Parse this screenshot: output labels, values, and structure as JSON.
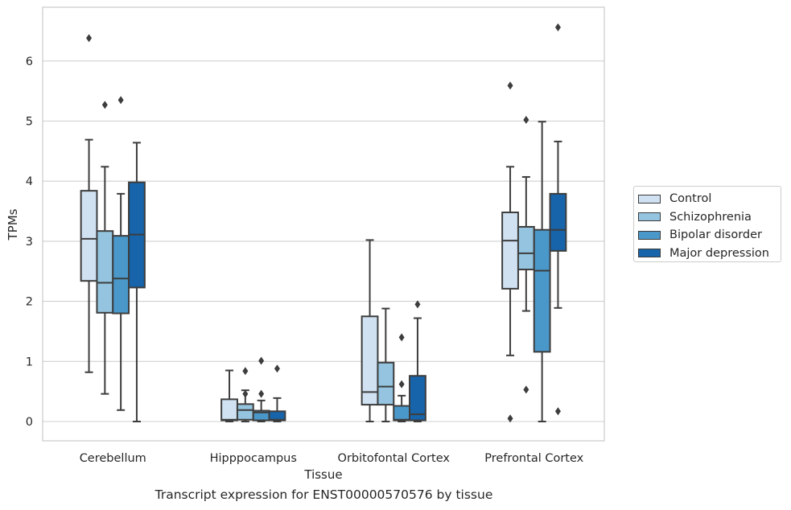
{
  "caption": "Transcript expression for ENST00000570576 by tissue",
  "chart_data": {
    "type": "box",
    "xlabel": "Tissue",
    "ylabel": "TPMs",
    "ylim": [
      -0.32,
      6.9
    ],
    "yticks": [
      0,
      1,
      2,
      3,
      4,
      5,
      6
    ],
    "grid": "horizontal",
    "legend_position": "right",
    "categories": [
      "Cerebellum",
      "Hipppocampus",
      "Orbitofontal Cortex",
      "Prefrontal Cortex"
    ],
    "series": [
      {
        "name": "Control",
        "color": "#d0e1f2",
        "boxes": [
          {
            "whisker_low": 0.82,
            "q1": 2.34,
            "median": 3.04,
            "q3": 3.84,
            "whisker_high": 4.69,
            "outliers": [
              6.38
            ]
          },
          {
            "whisker_low": 0.0,
            "q1": 0.02,
            "median": 0.03,
            "q3": 0.37,
            "whisker_high": 0.85,
            "outliers": []
          },
          {
            "whisker_low": 0.0,
            "q1": 0.28,
            "median": 0.49,
            "q3": 1.75,
            "whisker_high": 3.02,
            "outliers": []
          },
          {
            "whisker_low": 1.1,
            "q1": 2.21,
            "median": 3.01,
            "q3": 3.48,
            "whisker_high": 4.24,
            "outliers": [
              5.59,
              0.05
            ]
          }
        ]
      },
      {
        "name": "Schizophrenia",
        "color": "#94c4df",
        "boxes": [
          {
            "whisker_low": 0.46,
            "q1": 1.81,
            "median": 2.31,
            "q3": 3.17,
            "whisker_high": 4.24,
            "outliers": [
              5.27
            ]
          },
          {
            "whisker_low": 0.0,
            "q1": 0.03,
            "median": 0.19,
            "q3": 0.29,
            "whisker_high": 0.52,
            "outliers": [
              0.84,
              0.46
            ]
          },
          {
            "whisker_low": 0.0,
            "q1": 0.28,
            "median": 0.58,
            "q3": 0.98,
            "whisker_high": 1.88,
            "outliers": []
          },
          {
            "whisker_low": 1.84,
            "q1": 2.53,
            "median": 2.8,
            "q3": 3.24,
            "whisker_high": 4.07,
            "outliers": [
              5.02,
              0.53
            ]
          }
        ]
      },
      {
        "name": "Bipolar disorder",
        "color": "#4a98c9",
        "boxes": [
          {
            "whisker_low": 0.19,
            "q1": 1.8,
            "median": 2.38,
            "q3": 3.09,
            "whisker_high": 3.79,
            "outliers": [
              5.35
            ]
          },
          {
            "whisker_low": 0.0,
            "q1": 0.02,
            "median": 0.15,
            "q3": 0.18,
            "whisker_high": 0.35,
            "outliers": [
              1.01,
              0.46
            ]
          },
          {
            "whisker_low": 0.0,
            "q1": 0.02,
            "median": 0.03,
            "q3": 0.26,
            "whisker_high": 0.43,
            "outliers": [
              1.4,
              0.62
            ]
          },
          {
            "whisker_low": 0.0,
            "q1": 1.16,
            "median": 2.51,
            "q3": 3.19,
            "whisker_high": 4.99,
            "outliers": []
          }
        ]
      },
      {
        "name": "Major depression",
        "color": "#1764ab",
        "boxes": [
          {
            "whisker_low": 0.0,
            "q1": 2.23,
            "median": 3.11,
            "q3": 3.98,
            "whisker_high": 4.64,
            "outliers": []
          },
          {
            "whisker_low": 0.0,
            "q1": 0.02,
            "median": 0.03,
            "q3": 0.17,
            "whisker_high": 0.39,
            "outliers": [
              0.88
            ]
          },
          {
            "whisker_low": 0.0,
            "q1": 0.02,
            "median": 0.12,
            "q3": 0.76,
            "whisker_high": 1.72,
            "outliers": [
              1.95
            ]
          },
          {
            "whisker_low": 1.89,
            "q1": 2.84,
            "median": 3.19,
            "q3": 3.79,
            "whisker_high": 4.66,
            "outliers": [
              6.56,
              0.17
            ]
          }
        ]
      }
    ]
  }
}
